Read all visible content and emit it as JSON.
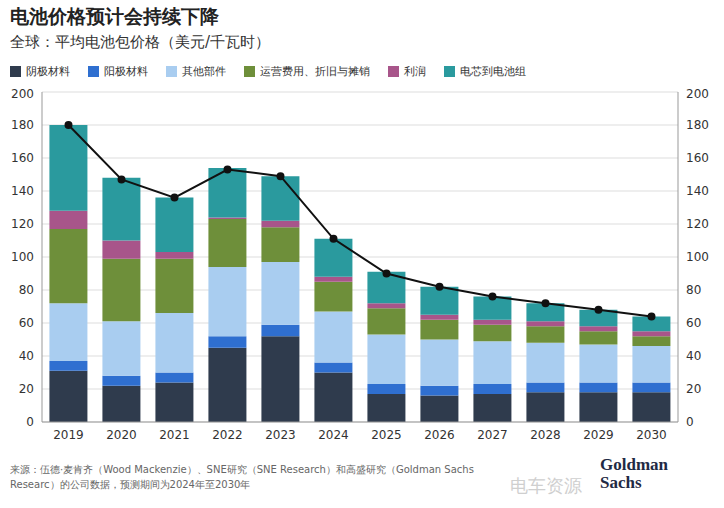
{
  "chart_data": {
    "type": "bar",
    "title": "电池价格预计会持续下降",
    "subtitle": "全球：平均电池包价格（美元/千瓦时）",
    "categories": [
      "2019",
      "2020",
      "2021",
      "2022",
      "2023",
      "2024",
      "2025",
      "2026",
      "2027",
      "2028",
      "2029",
      "2030"
    ],
    "series": [
      {
        "name": "阴极材料",
        "type": "bar",
        "color": "#2f3b4d",
        "values": [
          31,
          22,
          24,
          45,
          52,
          30,
          17,
          16,
          17,
          18,
          18,
          18
        ]
      },
      {
        "name": "阳极材料",
        "type": "bar",
        "color": "#2f6fd0",
        "values": [
          6,
          6,
          6,
          7,
          7,
          6,
          6,
          6,
          6,
          6,
          6,
          6
        ]
      },
      {
        "name": "其他部件",
        "type": "bar",
        "color": "#a9cdf0",
        "values": [
          35,
          33,
          36,
          42,
          38,
          31,
          30,
          28,
          26,
          24,
          23,
          22
        ]
      },
      {
        "name": "运营费用、折旧与摊销",
        "type": "bar",
        "color": "#6e8f3a",
        "values": [
          45,
          38,
          33,
          29,
          21,
          18,
          16,
          12,
          10,
          10,
          8,
          6
        ]
      },
      {
        "name": "利润",
        "type": "bar",
        "color": "#a8558a",
        "values": [
          11,
          11,
          4,
          1,
          4,
          3,
          3,
          3,
          3,
          3,
          3,
          3
        ]
      },
      {
        "name": "电芯到电池组",
        "type": "bar",
        "color": "#2a9a9e",
        "values": [
          52,
          38,
          33,
          30,
          27,
          23,
          19,
          17,
          14,
          11,
          10,
          9
        ]
      },
      {
        "type": "line",
        "axis": "y2",
        "color": "#111111",
        "marker": "circle",
        "values": [
          180,
          147,
          136,
          153,
          149,
          111,
          90,
          82,
          76,
          72,
          68,
          64
        ]
      }
    ],
    "ylim": [
      0,
      200
    ],
    "yticks": [
      0,
      20,
      40,
      60,
      80,
      100,
      120,
      140,
      160,
      180,
      200
    ],
    "y2lim": [
      0,
      200
    ],
    "y2ticks": [
      0,
      20,
      40,
      60,
      80,
      100,
      120,
      140,
      160,
      180,
      200
    ],
    "stacked": true,
    "grid": true,
    "legend": "top",
    "source": "来源：伍德·麦肯齐（Wood Mackenzie）、SNE研究（SNE Research）和高盛研究（Goldman Sachs Researc）的公司数据，预测期间为2024年至2030年",
    "logo": [
      "Goldman",
      "Sachs"
    ],
    "watermark": "电车资源"
  }
}
